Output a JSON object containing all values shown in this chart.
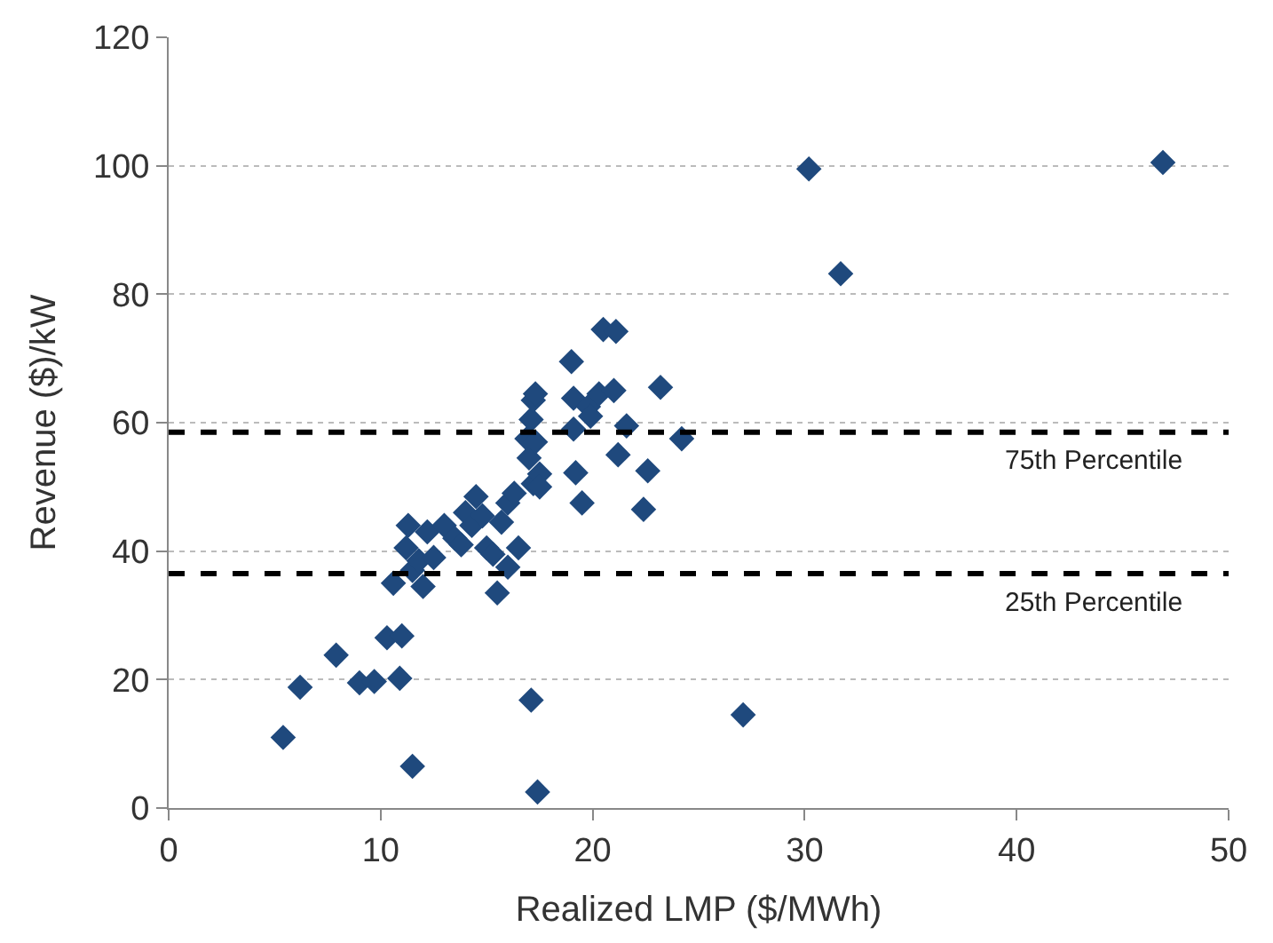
{
  "chart_data": {
    "type": "scatter",
    "xlabel": "Realized LMP ($/MWh)",
    "ylabel": "Revenue ($)/kW",
    "xlim": [
      0,
      50
    ],
    "xticks": [
      0,
      10,
      20,
      30,
      40,
      50
    ],
    "ylim": [
      0,
      120
    ],
    "yticks": [
      0,
      20,
      40,
      60,
      80,
      100,
      120
    ],
    "grid": "y",
    "marker": "diamond",
    "x": [
      5.4,
      6.2,
      7.9,
      9,
      9.7,
      10.3,
      11,
      10.9,
      11.5,
      10.6,
      11.2,
      11.3,
      11.5,
      12,
      11.8,
      12.2,
      12.5,
      13,
      13.5,
      13.8,
      14,
      14.3,
      14.5,
      14.8,
      15,
      15.3,
      15.5,
      15.7,
      16,
      16.3,
      16,
      16.5,
      16.9,
      17,
      17.1,
      17.2,
      17.3,
      17.2,
      17.5,
      17.5,
      17.1,
      17.4,
      17.3,
      19.1,
      19.1,
      19,
      19.2,
      19.5,
      19.8,
      19.9,
      20.3,
      20.5,
      21.1,
      21,
      21.2,
      21.6,
      22.4,
      22.6,
      23.2,
      24.2,
      27.1,
      30.2,
      31.7,
      46.9
    ],
    "series": [
      {
        "color": "#1f497d",
        "values": [
          11,
          18.8,
          23.8,
          19.5,
          19.7,
          26.5,
          26.8,
          20.2,
          6.5,
          35,
          40.5,
          44,
          37,
          34.5,
          38.5,
          43,
          39,
          44,
          42,
          41,
          46,
          44,
          48.5,
          45.5,
          40.5,
          39.5,
          33.5,
          44.5,
          47.5,
          49,
          37.5,
          40.5,
          57.5,
          54.5,
          60.5,
          63.5,
          64.5,
          50.5,
          52,
          50,
          16.8,
          2.5,
          57,
          59,
          63.8,
          69.5,
          52.2,
          47.5,
          62.5,
          61,
          64.5,
          74.5,
          74.2,
          65,
          55,
          59.5,
          46.5,
          52.5,
          65.5,
          57.5,
          14.5,
          99.5,
          83.2,
          100.5
        ]
      }
    ],
    "ref_lines": [
      {
        "axis": "y",
        "value": 58.5,
        "label": "75th Percentile",
        "color": "#000000",
        "line_style": "dashed"
      },
      {
        "axis": "y",
        "value": 36.5,
        "label": "25th Percentile",
        "color": "#000000",
        "line_style": "dashed"
      }
    ]
  }
}
